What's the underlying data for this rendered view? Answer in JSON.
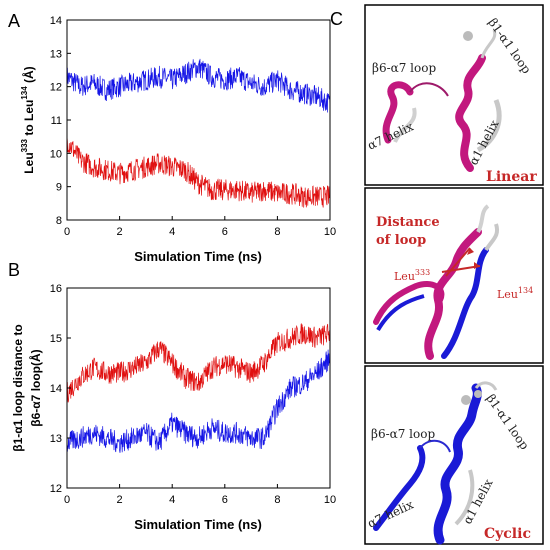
{
  "panels": {
    "a": "A",
    "b": "B",
    "c": "C"
  },
  "colors": {
    "blue": "#1515e6",
    "red": "#e01010",
    "magenta": "#c2187e",
    "navy": "#1a1ad6",
    "grey": "#c8c8c8",
    "annotation": "#c62828"
  },
  "chart_data": [
    {
      "type": "line",
      "panel": "A",
      "xlabel": "Simulation Time (ns)",
      "ylabel_parts": [
        "Leu",
        "333",
        " to Leu",
        "134",
        " (Å)"
      ],
      "xlim": [
        0,
        10
      ],
      "ylim": [
        8,
        14
      ],
      "xticks": [
        0,
        2,
        4,
        6,
        8,
        10
      ],
      "yticks": [
        8,
        9,
        10,
        11,
        12,
        13,
        14
      ],
      "series": [
        {
          "color": "#1515e6",
          "x": [
            0,
            0.5,
            1,
            1.5,
            2,
            2.5,
            3,
            3.5,
            4,
            4.5,
            5,
            5.5,
            6,
            6.5,
            7,
            7.5,
            8,
            8.5,
            9,
            9.5,
            10
          ],
          "y": [
            12.3,
            12.0,
            12.1,
            11.9,
            12.0,
            12.1,
            12.2,
            12.3,
            12.2,
            12.4,
            12.6,
            12.3,
            12.2,
            12.3,
            12.1,
            12.0,
            12.2,
            11.9,
            11.8,
            11.7,
            11.5
          ]
        },
        {
          "color": "#e01010",
          "x": [
            0,
            0.5,
            1,
            1.5,
            2,
            2.5,
            3,
            3.5,
            4,
            4.5,
            5,
            5.5,
            6,
            6.5,
            7,
            7.5,
            8,
            8.5,
            9,
            9.5,
            10
          ],
          "y": [
            10.4,
            9.8,
            9.6,
            9.5,
            9.4,
            9.5,
            9.6,
            9.7,
            9.6,
            9.5,
            9.1,
            8.9,
            8.9,
            8.9,
            8.8,
            8.9,
            8.8,
            8.8,
            8.7,
            8.7,
            8.7
          ]
        }
      ]
    },
    {
      "type": "line",
      "panel": "B",
      "xlabel": "Simulation Time (ns)",
      "ylabel_lines": [
        "β1-α1 loop distance to",
        "β6-α7 loop(Å)"
      ],
      "xlim": [
        0,
        10
      ],
      "ylim": [
        12,
        16
      ],
      "xticks": [
        0,
        2,
        4,
        6,
        8,
        10
      ],
      "yticks": [
        12,
        13,
        14,
        15,
        16
      ],
      "series": [
        {
          "color": "#e01010",
          "x": [
            0,
            0.5,
            1,
            1.5,
            2,
            2.5,
            3,
            3.5,
            4,
            4.5,
            5,
            5.5,
            6,
            6.5,
            7,
            7.5,
            8,
            8.5,
            9,
            9.5,
            10
          ],
          "y": [
            13.9,
            14.2,
            14.4,
            14.3,
            14.3,
            14.4,
            14.5,
            14.8,
            14.5,
            14.2,
            14.1,
            14.4,
            14.5,
            14.4,
            14.3,
            14.5,
            14.9,
            15.0,
            15.1,
            15.0,
            15.1
          ]
        },
        {
          "color": "#1515e6",
          "x": [
            0,
            0.5,
            1,
            1.5,
            2,
            2.5,
            3,
            3.5,
            4,
            4.5,
            5,
            5.5,
            6,
            6.5,
            7,
            7.5,
            8,
            8.5,
            9,
            9.5,
            10
          ],
          "y": [
            12.9,
            13.0,
            13.1,
            13.0,
            12.9,
            13.0,
            13.1,
            12.9,
            13.3,
            13.1,
            13.0,
            13.2,
            13.1,
            13.1,
            13.0,
            13.0,
            13.6,
            14.0,
            14.1,
            14.3,
            14.6
          ]
        }
      ]
    }
  ],
  "structures": {
    "top": {
      "loop_left": "β6-α7 loop",
      "loop_right": "β1-α1 loop",
      "helix_left": "α7 helix",
      "helix_right": "α1 helix",
      "tag": "Linear"
    },
    "middle": {
      "anno1": "Distance",
      "anno2": "of loop",
      "leu_left": "Leu",
      "leu_left_sup": "333",
      "leu_right": "Leu",
      "leu_right_sup": "134"
    },
    "bottom": {
      "loop_left": "β6-α7 loop",
      "loop_right": "β1-α1 loop",
      "helix_left": "α7 helix",
      "helix_right": "α1 helix",
      "tag": "Cyclic"
    }
  }
}
